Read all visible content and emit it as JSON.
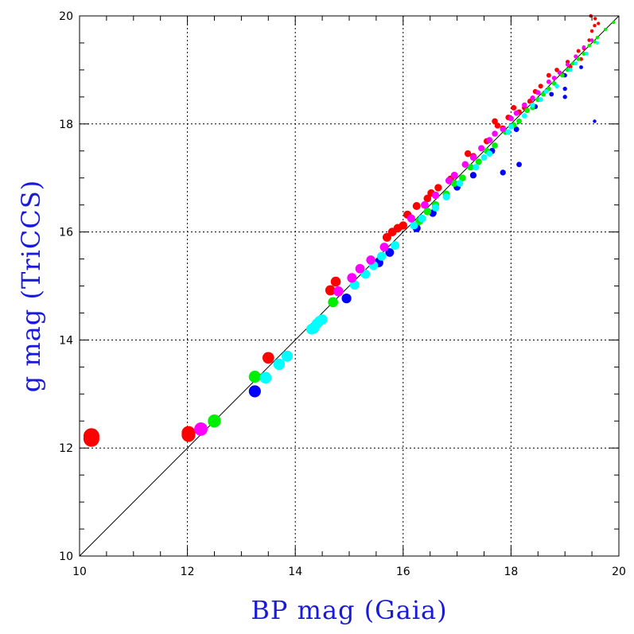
{
  "chart_data": {
    "type": "scatter",
    "xlabel": "BP mag (Gaia)",
    "ylabel": "g mag (TriCCS)",
    "xlim": [
      10,
      20
    ],
    "ylim": [
      10,
      20
    ],
    "x_ticks": [
      "10",
      "12",
      "14",
      "16",
      "18",
      "20"
    ],
    "y_ticks": [
      "10",
      "12",
      "14",
      "16",
      "18",
      "20"
    ],
    "grid": true,
    "reference_line": {
      "x": [
        10,
        20
      ],
      "y": [
        10,
        20
      ],
      "color": "#000000"
    },
    "colors": {
      "red": "#ff0000",
      "blue": "#0000ff",
      "green": "#00ee00",
      "cyan": "#00ffff",
      "magenta": "#ff00ff"
    },
    "series": [
      {
        "color": "#ff0000",
        "points": [
          [
            10.22,
            12.17
          ],
          [
            10.22,
            12.22
          ],
          [
            12.02,
            12.24
          ],
          [
            12.02,
            12.28
          ],
          [
            13.5,
            13.67
          ],
          [
            14.65,
            14.92
          ],
          [
            14.75,
            15.08
          ],
          [
            15.7,
            15.9
          ],
          [
            15.8,
            16.0
          ],
          [
            15.9,
            16.07
          ],
          [
            16.0,
            16.12
          ],
          [
            16.08,
            16.32
          ],
          [
            16.25,
            16.48
          ],
          [
            16.45,
            16.62
          ],
          [
            16.52,
            16.72
          ],
          [
            16.65,
            16.82
          ],
          [
            16.88,
            16.98
          ],
          [
            17.2,
            17.45
          ],
          [
            17.3,
            17.4
          ],
          [
            17.7,
            18.05
          ],
          [
            17.75,
            17.97
          ],
          [
            17.85,
            17.92
          ],
          [
            18.05,
            18.3
          ],
          [
            18.15,
            18.22
          ],
          [
            18.35,
            18.42
          ],
          [
            18.45,
            18.6
          ],
          [
            18.55,
            18.7
          ],
          [
            18.85,
            19.0
          ],
          [
            18.95,
            18.92
          ],
          [
            19.05,
            19.15
          ],
          [
            19.1,
            19.06
          ],
          [
            19.25,
            19.35
          ],
          [
            19.35,
            19.4
          ],
          [
            19.45,
            19.55
          ],
          [
            19.5,
            19.72
          ],
          [
            19.55,
            19.82
          ],
          [
            19.62,
            19.86
          ],
          [
            19.48,
            20.0
          ],
          [
            19.56,
            19.95
          ],
          [
            19.3,
            19.2
          ],
          [
            19.4,
            19.3
          ],
          [
            17.55,
            17.68
          ],
          [
            17.95,
            18.12
          ],
          [
            18.25,
            18.3
          ],
          [
            18.7,
            18.9
          ]
        ]
      },
      {
        "color": "#0000ff",
        "points": [
          [
            13.25,
            13.05
          ],
          [
            14.95,
            14.77
          ],
          [
            15.55,
            15.43
          ],
          [
            15.75,
            15.62
          ],
          [
            16.25,
            16.07
          ],
          [
            16.55,
            16.35
          ],
          [
            17.0,
            16.83
          ],
          [
            17.3,
            17.05
          ],
          [
            17.65,
            17.5
          ],
          [
            17.85,
            17.1
          ],
          [
            18.1,
            17.9
          ],
          [
            18.15,
            17.25
          ],
          [
            18.45,
            18.32
          ],
          [
            18.75,
            18.55
          ],
          [
            19.0,
            18.65
          ],
          [
            19.0,
            18.5
          ],
          [
            19.3,
            19.05
          ],
          [
            19.55,
            18.05
          ],
          [
            19.0,
            18.9
          ]
        ]
      },
      {
        "color": "#00ee00",
        "points": [
          [
            12.5,
            12.5
          ],
          [
            13.25,
            13.32
          ],
          [
            14.7,
            14.7
          ],
          [
            15.85,
            15.75
          ],
          [
            16.3,
            16.2
          ],
          [
            16.6,
            16.5
          ],
          [
            16.8,
            16.7
          ],
          [
            17.1,
            17.0
          ],
          [
            17.4,
            17.3
          ],
          [
            17.7,
            17.6
          ],
          [
            17.9,
            17.85
          ],
          [
            18.15,
            18.05
          ],
          [
            18.4,
            18.3
          ],
          [
            18.6,
            18.55
          ],
          [
            18.8,
            18.75
          ],
          [
            19.05,
            19.0
          ],
          [
            19.25,
            19.2
          ],
          [
            19.45,
            19.45
          ],
          [
            19.6,
            19.6
          ],
          [
            19.75,
            19.75
          ],
          [
            19.9,
            19.88
          ],
          [
            16.45,
            16.38
          ],
          [
            16.95,
            16.9
          ],
          [
            17.25,
            17.2
          ],
          [
            17.55,
            17.5
          ],
          [
            18.05,
            17.98
          ],
          [
            18.3,
            18.25
          ],
          [
            18.5,
            18.45
          ],
          [
            18.7,
            18.65
          ],
          [
            18.95,
            18.9
          ],
          [
            19.15,
            19.12
          ],
          [
            19.35,
            19.3
          ],
          [
            19.55,
            19.52
          ]
        ]
      },
      {
        "color": "#00ffff",
        "points": [
          [
            13.45,
            13.3
          ],
          [
            13.7,
            13.55
          ],
          [
            13.85,
            13.7
          ],
          [
            14.3,
            14.2
          ],
          [
            14.35,
            14.22
          ],
          [
            14.4,
            14.3
          ],
          [
            14.45,
            14.35
          ],
          [
            14.5,
            14.38
          ],
          [
            15.1,
            15.02
          ],
          [
            15.3,
            15.22
          ],
          [
            15.45,
            15.38
          ],
          [
            15.6,
            15.55
          ],
          [
            15.85,
            15.75
          ],
          [
            16.35,
            16.25
          ],
          [
            16.6,
            16.45
          ],
          [
            16.8,
            16.65
          ],
          [
            17.05,
            16.9
          ],
          [
            17.35,
            17.2
          ],
          [
            17.6,
            17.45
          ],
          [
            17.95,
            17.85
          ],
          [
            18.25,
            18.15
          ],
          [
            18.55,
            18.45
          ],
          [
            18.85,
            18.7
          ],
          [
            19.1,
            19.0
          ],
          [
            19.4,
            19.3
          ],
          [
            19.6,
            19.5
          ],
          [
            16.2,
            16.12
          ],
          [
            17.5,
            17.38
          ],
          [
            18.0,
            17.95
          ],
          [
            18.4,
            18.35
          ],
          [
            18.65,
            18.6
          ],
          [
            19.2,
            19.12
          ]
        ]
      },
      {
        "color": "#ff00ff",
        "points": [
          [
            12.25,
            12.35
          ],
          [
            14.8,
            14.9
          ],
          [
            15.05,
            15.15
          ],
          [
            15.2,
            15.32
          ],
          [
            15.4,
            15.48
          ],
          [
            15.65,
            15.72
          ],
          [
            16.15,
            16.25
          ],
          [
            16.4,
            16.5
          ],
          [
            16.6,
            16.68
          ],
          [
            16.95,
            17.05
          ],
          [
            17.15,
            17.25
          ],
          [
            17.45,
            17.55
          ],
          [
            17.7,
            17.82
          ],
          [
            17.85,
            17.9
          ],
          [
            18.0,
            18.1
          ],
          [
            18.25,
            18.35
          ],
          [
            18.5,
            18.58
          ],
          [
            18.7,
            18.78
          ],
          [
            18.9,
            18.95
          ],
          [
            19.05,
            19.1
          ],
          [
            19.2,
            19.25
          ],
          [
            19.35,
            19.42
          ],
          [
            19.5,
            19.55
          ],
          [
            16.85,
            16.95
          ],
          [
            17.3,
            17.38
          ],
          [
            17.6,
            17.7
          ],
          [
            18.1,
            18.2
          ],
          [
            18.4,
            18.48
          ],
          [
            18.8,
            18.85
          ]
        ]
      }
    ]
  }
}
